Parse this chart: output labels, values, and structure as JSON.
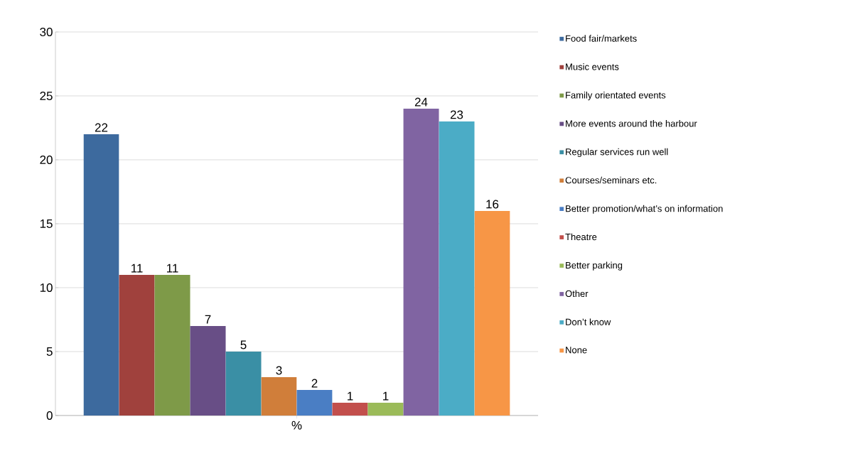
{
  "chart_data": {
    "type": "bar",
    "categories": [
      "%"
    ],
    "series": [
      {
        "name": "Food fair/markets",
        "color": "#3d6a9e",
        "values": [
          22
        ]
      },
      {
        "name": "Music events",
        "color": "#a0413d",
        "values": [
          11
        ]
      },
      {
        "name": "Family orientated events",
        "color": "#7e9a48",
        "values": [
          11
        ]
      },
      {
        "name": "More events around the harbour",
        "color": "#684e86",
        "values": [
          7
        ]
      },
      {
        "name": "Regular services run well",
        "color": "#3a8fa5",
        "values": [
          5
        ]
      },
      {
        "name": "Courses/seminars etc.",
        "color": "#d07e3a",
        "values": [
          3
        ]
      },
      {
        "name": "Better promotion/what’s on information",
        "color": "#4a7ec4",
        "values": [
          2
        ]
      },
      {
        "name": "Theatre",
        "color": "#c24f4c",
        "values": [
          1
        ]
      },
      {
        "name": "Better parking",
        "color": "#9bbb59",
        "values": [
          1
        ]
      },
      {
        "name": "Other",
        "color": "#8064a2",
        "values": [
          24
        ]
      },
      {
        "name": "Don’t know",
        "color": "#4bacc6",
        "values": [
          23
        ]
      },
      {
        "name": "None",
        "color": "#f79646",
        "values": [
          16
        ]
      }
    ],
    "ylim": [
      0,
      30
    ],
    "yticks": [
      0,
      5,
      10,
      15,
      20,
      25,
      30
    ],
    "grid": "y",
    "legend": "right",
    "data_labels": true
  }
}
